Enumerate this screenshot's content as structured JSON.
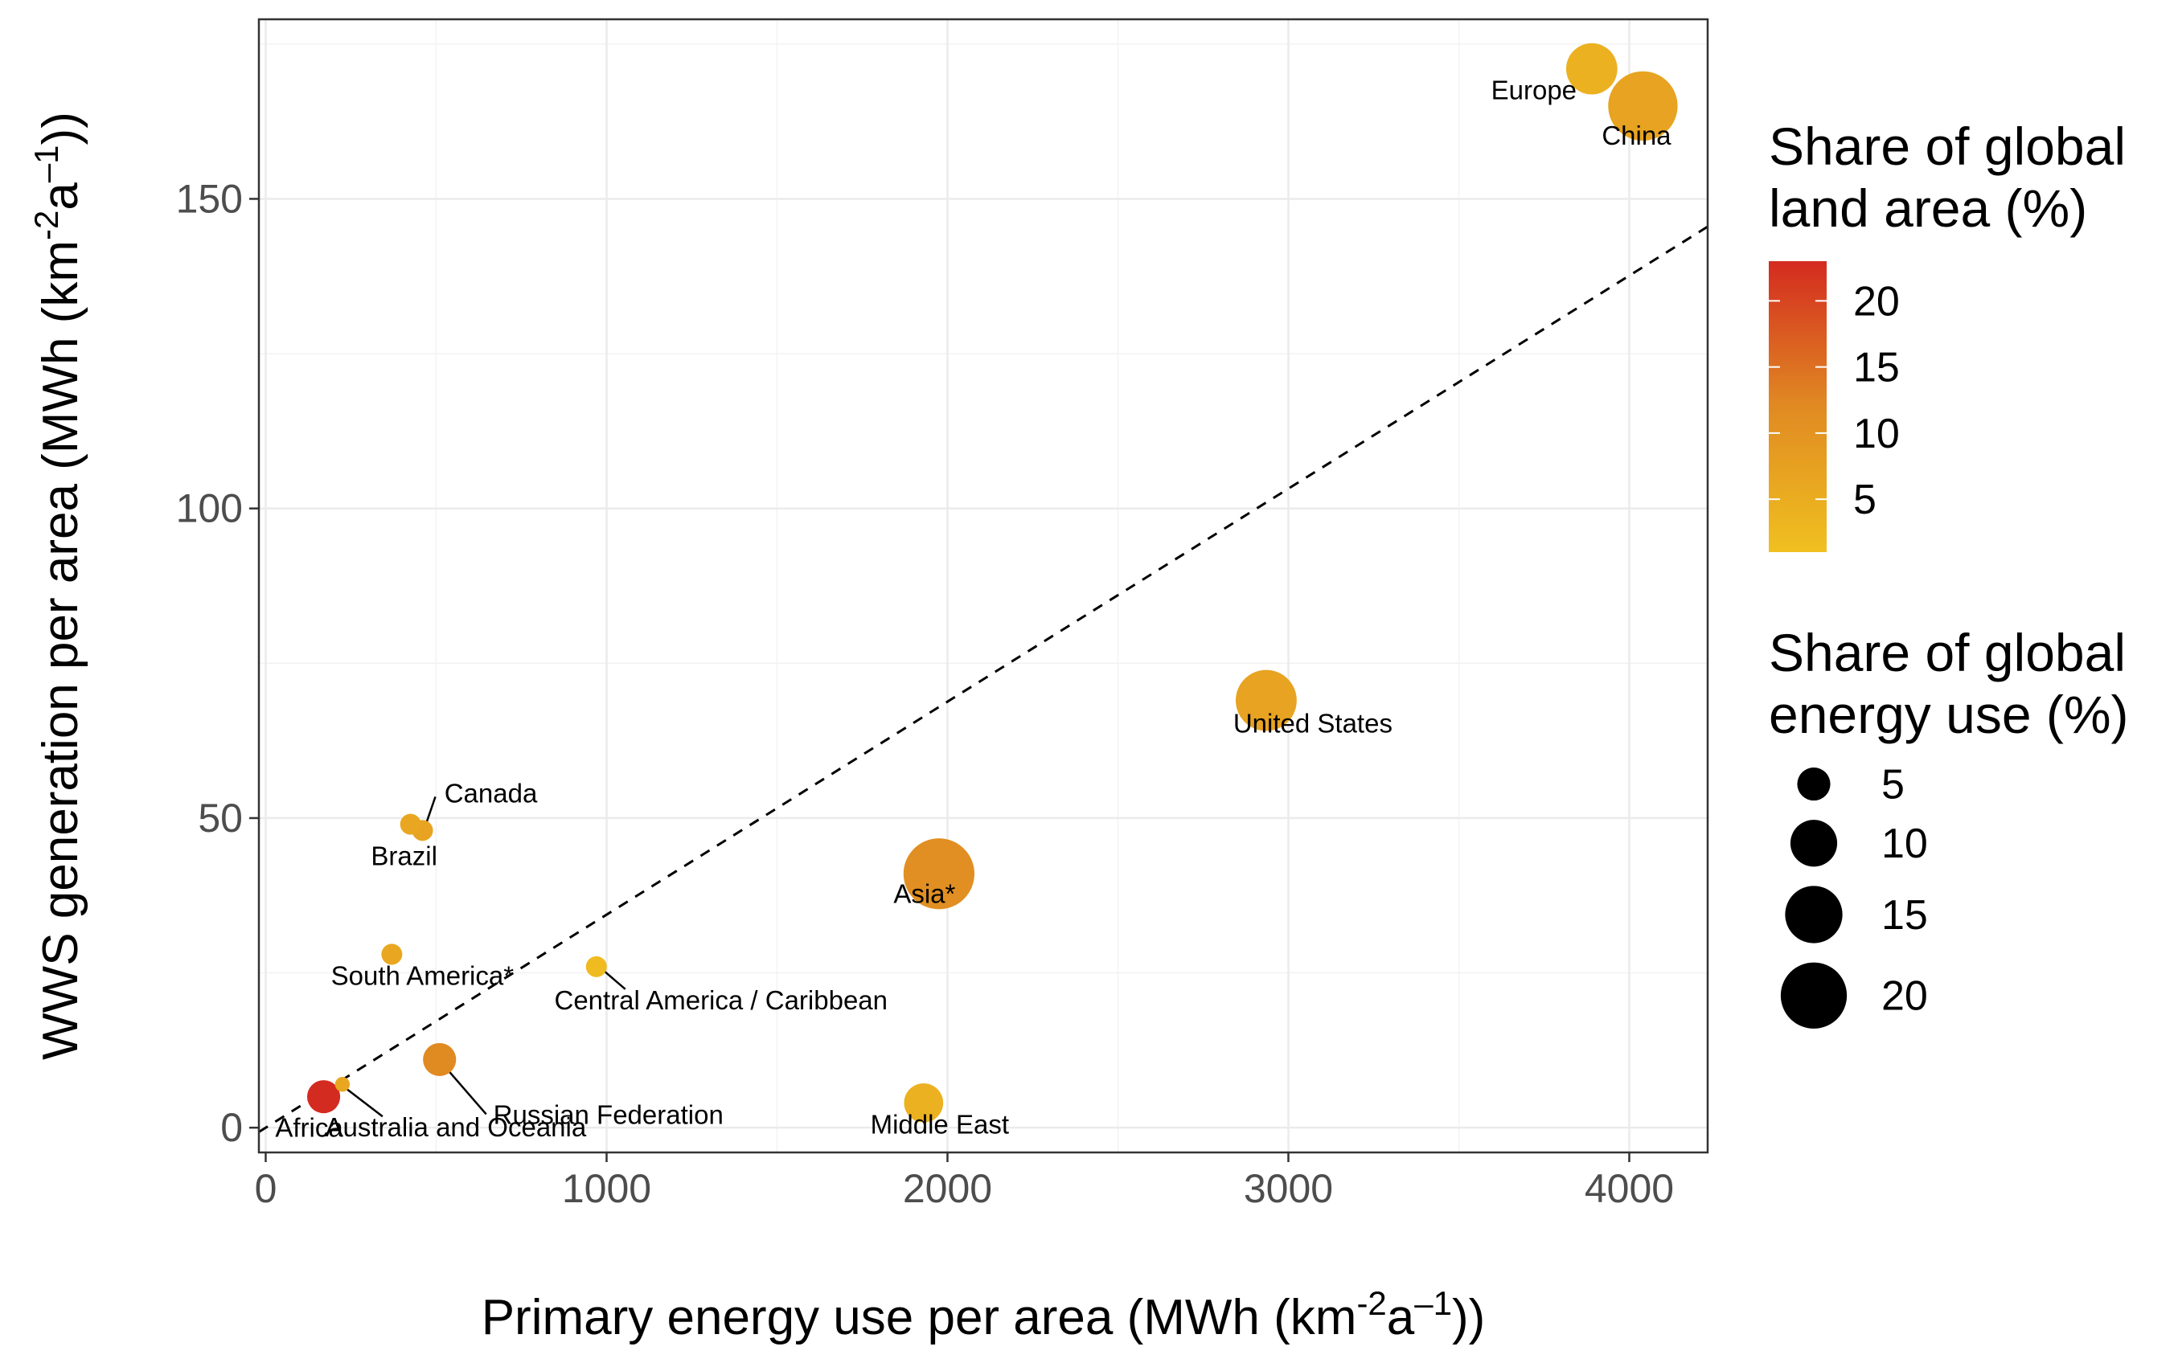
{
  "chart_data": {
    "type": "scatter",
    "xlabel": "Primary energy use per area (MWh (km",
    "xlabel_sup": "-2",
    "xlabel_mid": "a",
    "xlabel_sup2": "–1",
    "xlabel_end": "))",
    "ylabel": "WWS generation per area (MWh (km",
    "ylabel_sup": "-2",
    "ylabel_mid": "a",
    "ylabel_sup2": "–1",
    "ylabel_end": "))",
    "xlim": [
      -20,
      4230
    ],
    "ylim": [
      -4,
      179
    ],
    "x_ticks": [
      0,
      1000,
      2000,
      3000,
      4000
    ],
    "x_tick_labels": [
      "0",
      "1000",
      "2000",
      "3000",
      "4000"
    ],
    "y_ticks": [
      0,
      50,
      100,
      150
    ],
    "y_tick_labels": [
      "0",
      "50",
      "100",
      "150"
    ],
    "grid": true,
    "reference_line": {
      "style": "dashed",
      "slope": 0.0344,
      "intercept": 0
    },
    "points": [
      {
        "label": "Europe",
        "x": 3890,
        "y": 171,
        "land_share": 4,
        "energy_share": 12
      },
      {
        "label": "China",
        "x": 4040,
        "y": 165,
        "land_share": 7,
        "energy_share": 22
      },
      {
        "label": "United States",
        "x": 2935,
        "y": 69,
        "land_share": 7,
        "energy_share": 17
      },
      {
        "label": "Asia*",
        "x": 1975,
        "y": 41,
        "land_share": 11,
        "energy_share": 23
      },
      {
        "label": "Canada",
        "x": 460,
        "y": 48,
        "land_share": 7,
        "energy_share": 2
      },
      {
        "label": "Brazil",
        "x": 425,
        "y": 49,
        "land_share": 6,
        "energy_share": 2
      },
      {
        "label": "South America*",
        "x": 370,
        "y": 28,
        "land_share": 6,
        "energy_share": 2
      },
      {
        "label": "Central America / Caribbean",
        "x": 970,
        "y": 26,
        "land_share": 2,
        "energy_share": 2
      },
      {
        "label": "Russian Federation",
        "x": 510,
        "y": 11,
        "land_share": 12,
        "energy_share": 5
      },
      {
        "label": "Middle East",
        "x": 1930,
        "y": 4,
        "land_share": 4,
        "energy_share": 7
      },
      {
        "label": "Africa",
        "x": 170,
        "y": 5,
        "land_share": 23,
        "energy_share": 5
      },
      {
        "label": "Australia and Oceania",
        "x": 225,
        "y": 7,
        "land_share": 6,
        "energy_share": 1
      }
    ],
    "color_legend": {
      "title_line1": "Share of global",
      "title_line2": "land area (%)",
      "breaks": [
        20,
        15,
        10,
        5
      ],
      "labels": [
        "20",
        "15",
        "10",
        "5"
      ],
      "range": [
        1,
        23
      ],
      "colors": [
        "#f0c020",
        "#e08a22",
        "#d42b20"
      ]
    },
    "size_legend": {
      "title_line1": "Share of global",
      "title_line2": "energy use (%)",
      "breaks": [
        5,
        10,
        15,
        20
      ],
      "labels": [
        "5",
        "10",
        "15",
        "20"
      ]
    }
  }
}
